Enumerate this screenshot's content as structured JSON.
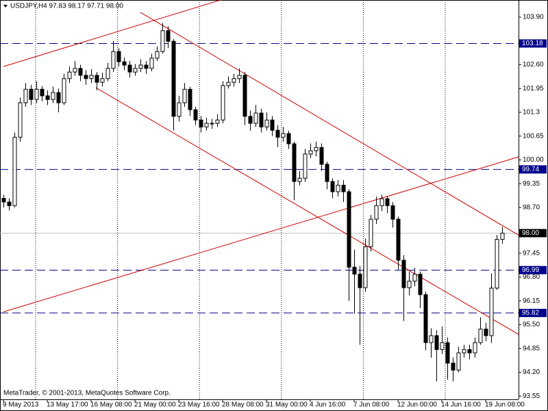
{
  "chart_data": {
    "type": "candlestick",
    "title": "USDJPY,H4  97.83 98.17 97.71 98.00",
    "footer": "MetaTrader, © 2001-2013, MetaQuotes Software Corp.",
    "ylim": [
      93.46,
      104.33
    ],
    "yticks": [
      {
        "value": 103.9,
        "label": "103.90"
      },
      {
        "value": 102.6,
        "label": "102.60"
      },
      101.95,
      101.3,
      100.65,
      {
        "value": 100,
        "label": "100.00"
      },
      99.35,
      {
        "value": 98.7,
        "label": "98.70"
      },
      97.45,
      {
        "value": 96.8,
        "label": "96.80"
      },
      96.15,
      {
        "value": 95.5,
        "label": "95.50"
      },
      94.85,
      {
        "value": 94.2,
        "label": "94.20"
      },
      93.55
    ],
    "xticks": [
      {
        "value": 0,
        "label": "9 May 2013"
      },
      {
        "value": 8,
        "label": "13 May 17:00"
      },
      {
        "value": 16,
        "label": "16 May 08:00"
      },
      {
        "value": 24,
        "label": "21 May 00:00"
      },
      {
        "value": 32,
        "label": "23 May 16:00"
      },
      {
        "value": 40,
        "label": "28 May 08:00"
      },
      {
        "value": 48,
        "label": "31 May 00:00"
      },
      {
        "value": 56,
        "label": "4 Jun 16:00"
      },
      {
        "value": 64,
        "label": "7 Jun 08:00"
      },
      {
        "value": 72,
        "label": "12 Jun 00:00"
      },
      {
        "value": 80,
        "label": "14 Jun 16:00"
      },
      {
        "value": 88,
        "label": "19 Jun 08:00"
      }
    ],
    "grid": true,
    "open": [
      98.95,
      98.85,
      98.75,
      100.62,
      101.56,
      101.93,
      101.65,
      101.93,
      101.75,
      101.65,
      101.84,
      101.56,
      102.22,
      102.4,
      102.5,
      102.31,
      102.22,
      102.31,
      102.12,
      102.22,
      102.5,
      102.96,
      102.68,
      102.59,
      102.4,
      102.5,
      102.59,
      102.5,
      102.78,
      102.96,
      103.53,
      103.24,
      101.19,
      101.56,
      101.93,
      101.37,
      101.09,
      100.9,
      101,
      101,
      101.09,
      102.03,
      102.12,
      102.22,
      102.31,
      101.19,
      101,
      101.28,
      100.9,
      101.09,
      100.81,
      100.62,
      100.72,
      100.44,
      99.41,
      99.5,
      100.16,
      100.25,
      100.34,
      99.88,
      99.41,
      99.13,
      99.31,
      99.13,
      97.07,
      96.88,
      96.51,
      97.63,
      98.38,
      98.75,
      98.94,
      98.75,
      98.38,
      97.26,
      96.51,
      96.69,
      96.88,
      96.32,
      95.01,
      95.2,
      94.82,
      95.01,
      94.45,
      94.26,
      94.73,
      94.82,
      94.73,
      95.01,
      95.38,
      95.2,
      96.5,
      97.83
    ],
    "high": [
      99.05,
      98.95,
      100.75,
      101.7,
      102.1,
      102.05,
      102.15,
      102.02,
      101.9,
      102,
      101.95,
      102.35,
      102.55,
      102.7,
      102.6,
      102.45,
      102.48,
      102.4,
      102.38,
      102.65,
      103.25,
      103.05,
      102.8,
      102.7,
      102.62,
      102.75,
      102.7,
      102.9,
      103.1,
      103.74,
      103.65,
      103.3,
      101.75,
      102.1,
      102,
      101.45,
      101.2,
      101.15,
      101.12,
      101.25,
      102.15,
      102.28,
      102.35,
      102.5,
      102.4,
      101.35,
      101.5,
      101.4,
      101.3,
      101.2,
      100.95,
      100.9,
      100.8,
      100.5,
      99.7,
      100.3,
      100.45,
      100.5,
      100.45,
      99.95,
      99.5,
      99.45,
      99.45,
      99.2,
      97.55,
      97.1,
      97.85,
      98.5,
      99,
      99.05,
      99,
      98.85,
      98.45,
      97.4,
      96.95,
      97.05,
      96.95,
      96.4,
      95.4,
      95.35,
      95.45,
      95.15,
      94.6,
      94.9,
      94.95,
      94.95,
      95.15,
      95.7,
      95.55,
      96.9,
      97.95,
      98.17
    ],
    "low": [
      98.7,
      98.62,
      98.7,
      100.5,
      101.45,
      101.5,
      101.55,
      101.6,
      101.5,
      101.55,
      101.3,
      101.5,
      102.1,
      102.3,
      102.15,
      102.05,
      102.1,
      101.9,
      102,
      102.15,
      102.4,
      102.55,
      102.45,
      102.25,
      102.3,
      102.4,
      102.35,
      102.42,
      102.7,
      102.9,
      103.05,
      100.8,
      101.05,
      101.45,
      101.2,
      100.95,
      100.75,
      100.8,
      100.85,
      100.9,
      101,
      101.95,
      102,
      102.1,
      100.95,
      100.8,
      100.9,
      100.75,
      100.8,
      100.65,
      100.35,
      100.5,
      100.3,
      98.9,
      99.3,
      99.4,
      100.05,
      100.1,
      99.7,
      99.2,
      98.95,
      99,
      98.85,
      96.15,
      95.8,
      94.95,
      96.4,
      97.5,
      98.25,
      98.6,
      98.55,
      98.15,
      97,
      95.6,
      96.3,
      96.55,
      95.95,
      94.8,
      94.6,
      93.95,
      94.7,
      94,
      93.95,
      94.2,
      94.6,
      94.55,
      94.6,
      94.95,
      95.05,
      95,
      96.45,
      97.71
    ],
    "close": [
      98.85,
      98.75,
      100.62,
      101.56,
      101.93,
      101.65,
      101.93,
      101.75,
      101.65,
      101.84,
      101.56,
      102.22,
      102.4,
      102.5,
      102.31,
      102.22,
      102.31,
      102.12,
      102.22,
      102.5,
      102.96,
      102.68,
      102.59,
      102.4,
      102.5,
      102.59,
      102.5,
      102.78,
      102.96,
      103.53,
      103.24,
      101.19,
      101.56,
      101.93,
      101.37,
      101.09,
      100.9,
      101,
      101,
      101.09,
      102.03,
      102.12,
      102.22,
      102.31,
      101.19,
      101,
      101.28,
      100.9,
      101.09,
      100.81,
      100.62,
      100.72,
      100.44,
      99.41,
      99.5,
      100.16,
      100.25,
      100.34,
      99.88,
      99.41,
      99.13,
      99.31,
      99.13,
      97.07,
      96.88,
      96.51,
      97.63,
      98.38,
      98.75,
      98.94,
      98.75,
      98.38,
      97.26,
      96.51,
      96.69,
      96.88,
      96.32,
      95.01,
      95.2,
      94.82,
      95.01,
      94.45,
      94.26,
      94.73,
      94.82,
      94.73,
      95.01,
      95.38,
      95.2,
      96.5,
      97.83,
      98
    ],
    "levels": [
      {
        "value": 103.18,
        "color": "#00008b"
      },
      {
        "value": 99.74,
        "color": "#00008b"
      },
      {
        "value": 96.99,
        "color": "#00008b"
      },
      {
        "value": 95.82,
        "color": "#00008b"
      }
    ],
    "current_price": {
      "value": 98,
      "label": "98.00"
    },
    "trend_lines": [
      {
        "points": [
          [
            0,
            102.55
          ],
          [
            37.5,
            104.27
          ]
        ],
        "color": "#cc0000"
      },
      {
        "points": [
          [
            25,
            104.03
          ],
          [
            94.4,
            97.91
          ]
        ],
        "color": "#cc0000"
      },
      {
        "points": [
          [
            16.9,
            101.97
          ],
          [
            94.4,
            95.2
          ]
        ],
        "color": "#cc0000"
      },
      {
        "points": [
          [
            0,
            95.85
          ],
          [
            94.4,
            100.1
          ]
        ],
        "color": "#cc0000"
      }
    ]
  }
}
